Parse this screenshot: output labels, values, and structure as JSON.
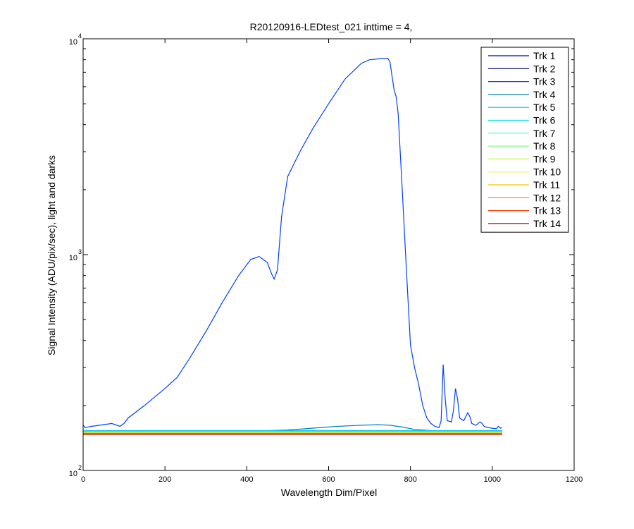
{
  "chart_data": {
    "type": "line",
    "title": "R20120916-LEDtest_021 inttime = 4,",
    "xlabel": "Wavelength Dim/Pixel",
    "ylabel": "Signal Intensity (ADU/pix/sec), light and darks",
    "xlim": [
      0,
      1200
    ],
    "ylim": [
      100,
      10000
    ],
    "yscale": "log",
    "grid": false,
    "legend_position": "top-right",
    "x_ticks": [
      {
        "value": 0,
        "label": "0"
      },
      {
        "value": 200,
        "label": "200"
      },
      {
        "value": 400,
        "label": "400"
      },
      {
        "value": 600,
        "label": "600"
      },
      {
        "value": 800,
        "label": "800"
      },
      {
        "value": 1000,
        "label": "1000"
      },
      {
        "value": 1200,
        "label": "1200"
      }
    ],
    "y_ticks": [
      {
        "value": 100,
        "base": "10",
        "exp": "2"
      },
      {
        "value": 1000,
        "base": "10",
        "exp": "3"
      },
      {
        "value": 10000,
        "base": "10",
        "exp": "4"
      }
    ],
    "series": [
      {
        "name": "Trk 1",
        "color": "#0000bf",
        "x": [
          0,
          1024
        ],
        "y": [
          150,
          150
        ]
      },
      {
        "name": "Trk 2",
        "color": "#00007f",
        "x": [
          0,
          1024
        ],
        "y": [
          149,
          149
        ]
      },
      {
        "name": "Trk 3",
        "color": "#0040ff",
        "x": [
          0,
          5,
          20,
          50,
          70,
          90,
          100,
          110,
          150,
          200,
          230,
          260,
          300,
          340,
          380,
          410,
          430,
          450,
          460,
          467,
          475,
          485,
          500,
          530,
          560,
          600,
          640,
          680,
          700,
          730,
          745,
          750,
          760,
          765,
          770,
          780,
          790,
          800,
          810,
          820,
          830,
          840,
          850,
          860,
          870,
          875,
          880,
          885,
          890,
          900,
          905,
          910,
          915,
          920,
          930,
          940,
          945,
          950,
          960,
          970,
          975,
          980,
          990,
          1000,
          1010,
          1015,
          1020,
          1024
        ],
        "y": [
          162,
          158,
          160,
          163,
          165,
          160,
          165,
          175,
          200,
          240,
          270,
          330,
          440,
          600,
          800,
          950,
          980,
          920,
          820,
          770,
          850,
          1500,
          2300,
          3000,
          3800,
          5000,
          6500,
          7700,
          8000,
          8100,
          8100,
          7800,
          5800,
          5400,
          4500,
          2000,
          850,
          380,
          300,
          250,
          200,
          175,
          165,
          160,
          158,
          170,
          310,
          215,
          170,
          168,
          190,
          240,
          215,
          175,
          170,
          185,
          178,
          165,
          162,
          168,
          165,
          160,
          158,
          157,
          156,
          160,
          157,
          158
        ]
      },
      {
        "name": "Trk 4",
        "color": "#0080bf",
        "x": [
          0,
          200,
          400,
          500,
          560,
          620,
          680,
          720,
          750,
          780,
          810,
          850,
          1024
        ],
        "y": [
          151,
          151,
          152,
          154,
          157,
          160,
          162,
          163,
          162,
          159,
          155,
          153,
          152
        ]
      },
      {
        "name": "Trk 5",
        "color": "#00bfff",
        "x": [
          0,
          1024
        ],
        "y": [
          153,
          153
        ]
      },
      {
        "name": "Trk 6",
        "color": "#00dfdf",
        "x": [
          0,
          1024
        ],
        "y": [
          152,
          152
        ]
      },
      {
        "name": "Trk 7",
        "color": "#40ffdf",
        "x": [
          0,
          1024
        ],
        "y": [
          151,
          151
        ]
      },
      {
        "name": "Trk 8",
        "color": "#80ff80",
        "x": [
          0,
          1024
        ],
        "y": [
          150,
          150
        ]
      },
      {
        "name": "Trk 9",
        "color": "#bfff40",
        "x": [
          0,
          1024
        ],
        "y": [
          150,
          150
        ]
      },
      {
        "name": "Trk 10",
        "color": "#ffff00",
        "x": [
          0,
          1024
        ],
        "y": [
          149,
          149
        ]
      },
      {
        "name": "Trk 11",
        "color": "#ffbf00",
        "x": [
          0,
          1024
        ],
        "y": [
          149,
          149
        ]
      },
      {
        "name": "Trk 12",
        "color": "#ff8000",
        "x": [
          0,
          1024
        ],
        "y": [
          148,
          148
        ]
      },
      {
        "name": "Trk 13",
        "color": "#ff4000",
        "x": [
          0,
          1024
        ],
        "y": [
          148,
          148
        ]
      },
      {
        "name": "Trk 14",
        "color": "#bf0000",
        "x": [
          0,
          1024
        ],
        "y": [
          147,
          147
        ]
      }
    ]
  }
}
